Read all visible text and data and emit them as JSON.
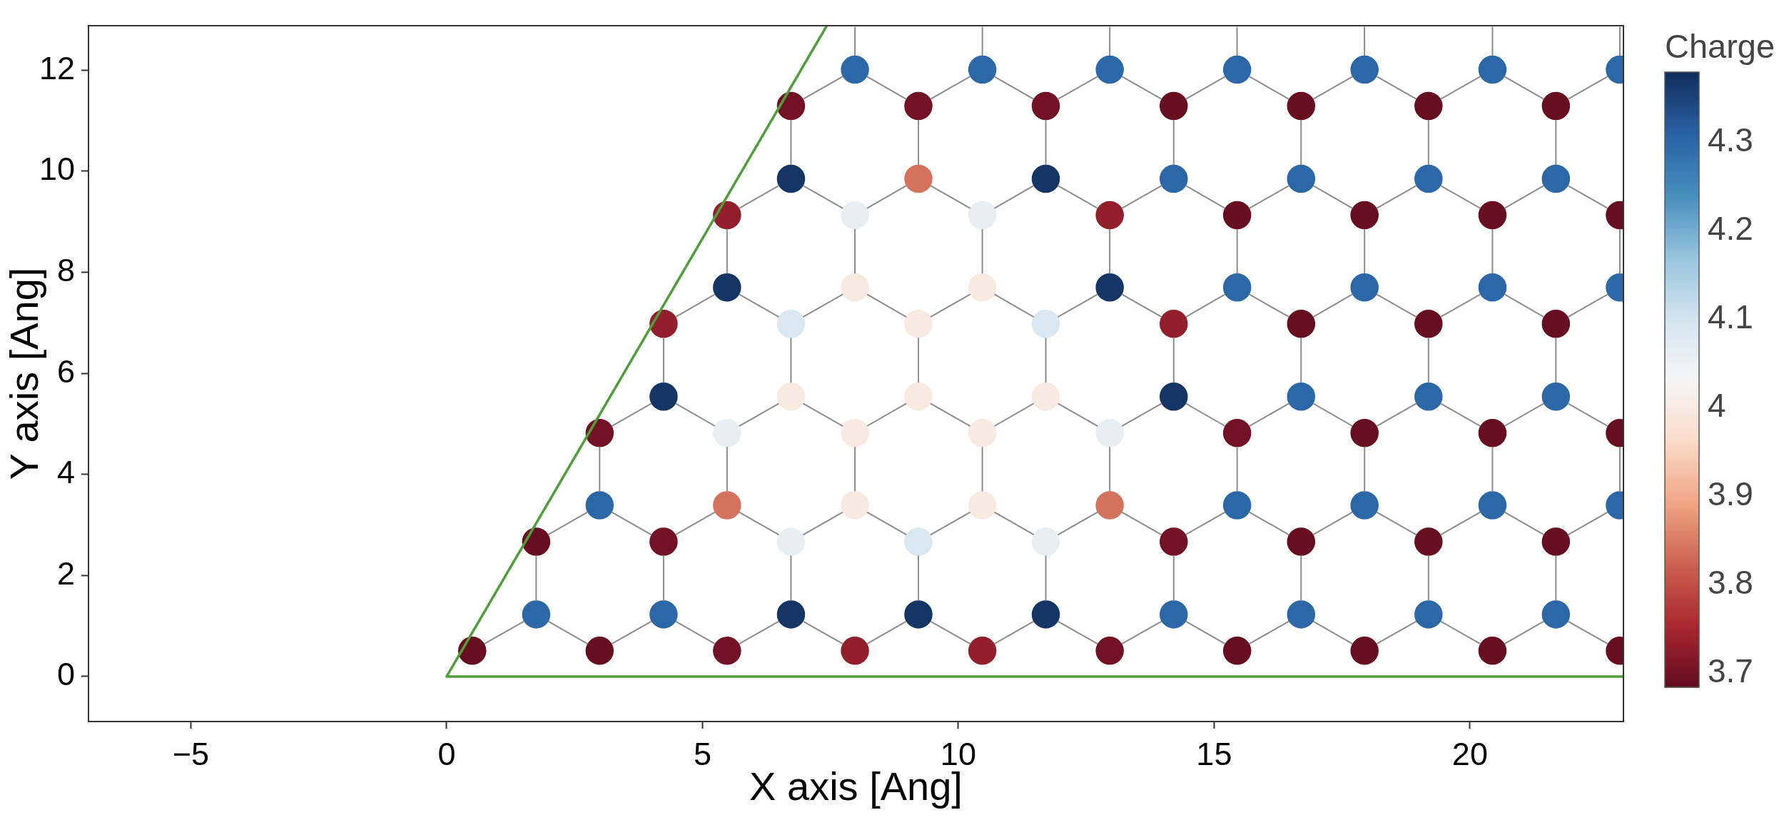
{
  "chart_data": {
    "type": "scatter",
    "xlabel": "X axis [Ang]",
    "ylabel": "Y axis [Ang]",
    "clabel": "Charge",
    "xlim": [
      -7,
      23
    ],
    "ylim": [
      -0.89,
      12.88
    ],
    "xticks": [
      {
        "value": -5,
        "label": "−5"
      },
      0,
      5,
      10,
      15,
      20
    ],
    "yticks": [
      0,
      2,
      4,
      6,
      8,
      10,
      12
    ],
    "clim": [
      3.684,
      4.379
    ],
    "cticks": [
      3.7,
      3.8,
      3.9,
      4,
      4.1,
      4.2,
      4.3
    ],
    "grid": false,
    "legend": false,
    "series": [
      {
        "marker": "circle",
        "x": [
          0.5,
          2.99,
          5.48,
          7.98,
          10.47,
          12.96,
          15.45,
          17.94,
          20.44,
          22.93,
          1.75,
          4.24,
          6.73,
          9.22,
          11.71,
          14.21,
          16.7,
          19.19,
          21.68,
          1.75,
          4.24,
          6.73,
          9.22,
          11.71,
          14.21,
          16.7,
          19.19,
          21.68,
          2.99,
          5.48,
          7.98,
          10.47,
          12.96,
          15.45,
          17.94,
          20.44,
          22.93,
          2.99,
          5.48,
          7.98,
          10.47,
          12.96,
          15.45,
          17.94,
          20.44,
          22.93,
          4.24,
          6.73,
          9.22,
          11.71,
          14.21,
          16.7,
          19.19,
          21.68,
          4.24,
          6.73,
          9.22,
          11.71,
          14.21,
          16.7,
          19.19,
          21.68,
          5.48,
          7.98,
          10.47,
          12.96,
          15.45,
          17.94,
          20.44,
          22.93,
          5.48,
          7.98,
          10.47,
          12.96,
          15.45,
          17.94,
          20.44,
          22.93,
          6.73,
          9.22,
          11.71,
          14.21,
          16.7,
          19.19,
          21.68,
          6.73,
          9.22,
          11.71,
          14.21,
          16.7,
          19.19,
          21.68,
          7.98,
          10.47,
          12.96,
          15.45,
          17.94,
          20.44,
          22.93
        ],
        "values": [
          0.51,
          0.51,
          0.51,
          0.51,
          0.51,
          0.51,
          0.51,
          0.51,
          0.51,
          0.51,
          1.23,
          1.23,
          1.23,
          1.23,
          1.23,
          1.23,
          1.23,
          1.23,
          1.23,
          2.67,
          2.67,
          2.67,
          2.67,
          2.67,
          2.67,
          2.67,
          2.67,
          2.67,
          3.39,
          3.39,
          3.39,
          3.39,
          3.39,
          3.39,
          3.39,
          3.39,
          3.39,
          4.82,
          4.82,
          4.82,
          4.82,
          4.82,
          4.82,
          4.82,
          4.82,
          4.82,
          5.54,
          5.54,
          5.54,
          5.54,
          5.54,
          5.54,
          5.54,
          5.54,
          6.98,
          6.98,
          6.98,
          6.98,
          6.98,
          6.98,
          6.98,
          6.98,
          7.7,
          7.7,
          7.7,
          7.7,
          7.7,
          7.7,
          7.7,
          7.7,
          9.13,
          9.13,
          9.13,
          9.13,
          9.13,
          9.13,
          9.13,
          9.13,
          9.85,
          9.85,
          9.85,
          9.85,
          9.85,
          9.85,
          9.85,
          11.29,
          11.29,
          11.29,
          11.29,
          11.29,
          11.29,
          11.29,
          12.01,
          12.01,
          12.01,
          12.01,
          12.01,
          12.01,
          12.01
        ],
        "cvalues": [
          3.69,
          3.69,
          3.7,
          3.73,
          3.73,
          3.7,
          3.69,
          3.69,
          3.69,
          3.69,
          4.3,
          4.3,
          4.37,
          4.37,
          4.37,
          4.3,
          4.3,
          4.3,
          4.3,
          3.69,
          3.7,
          4.06,
          4.09,
          4.06,
          3.7,
          3.69,
          3.69,
          3.69,
          4.3,
          3.84,
          4.0,
          4.0,
          3.84,
          4.3,
          4.3,
          4.3,
          4.3,
          3.7,
          4.06,
          4.0,
          4.0,
          4.06,
          3.7,
          3.69,
          3.69,
          3.69,
          4.37,
          4.0,
          4.0,
          4.0,
          4.37,
          4.3,
          4.3,
          4.3,
          3.73,
          4.09,
          4.0,
          4.09,
          3.73,
          3.69,
          3.69,
          3.69,
          4.37,
          4.0,
          4.0,
          4.37,
          4.3,
          4.3,
          4.3,
          4.3,
          3.73,
          4.06,
          4.06,
          3.73,
          3.69,
          3.69,
          3.69,
          3.69,
          4.37,
          3.84,
          4.37,
          4.3,
          4.3,
          4.3,
          4.3,
          3.7,
          3.7,
          3.7,
          3.69,
          3.69,
          3.69,
          3.69,
          4.3,
          4.3,
          4.3,
          4.3,
          4.3,
          4.3,
          4.3
        ],
        "colors": [
          "#680e21",
          "#680e21",
          "#731224",
          "#921f2b",
          "#921f2b",
          "#731224",
          "#680e21",
          "#680e21",
          "#680e21",
          "#680e21",
          "#2c68a8",
          "#2c68a8",
          "#153565",
          "#153565",
          "#153565",
          "#2c68a8",
          "#2c68a8",
          "#2c68a8",
          "#2c68a8",
          "#680e21",
          "#731224",
          "#e7eff3",
          "#d8e7f0",
          "#e7eff3",
          "#731224",
          "#680e21",
          "#680e21",
          "#680e21",
          "#2c68a8",
          "#d5725d",
          "#f8eae1",
          "#f8eae1",
          "#d5725d",
          "#2c68a8",
          "#2c68a8",
          "#2c68a8",
          "#2c68a8",
          "#731224",
          "#e7eff3",
          "#f8eae1",
          "#f8eae1",
          "#e7eff3",
          "#731224",
          "#680e21",
          "#680e21",
          "#680e21",
          "#153565",
          "#f8eae1",
          "#f8eae1",
          "#f8eae1",
          "#153565",
          "#2c68a8",
          "#2c68a8",
          "#2c68a8",
          "#921f2b",
          "#d8e7f0",
          "#f8eae1",
          "#d8e7f0",
          "#921f2b",
          "#680e21",
          "#680e21",
          "#680e21",
          "#153565",
          "#f8eae1",
          "#f8eae1",
          "#153565",
          "#2c68a8",
          "#2c68a8",
          "#2c68a8",
          "#2c68a8",
          "#921f2b",
          "#e7eff3",
          "#e7eff3",
          "#921f2b",
          "#680e21",
          "#680e21",
          "#680e21",
          "#680e21",
          "#153565",
          "#d5725d",
          "#153565",
          "#2c68a8",
          "#2c68a8",
          "#2c68a8",
          "#2c68a8",
          "#731224",
          "#731224",
          "#731224",
          "#680e21",
          "#680e21",
          "#680e21",
          "#680e21",
          "#2c68a8",
          "#2c68a8",
          "#2c68a8",
          "#2c68a8",
          "#2c68a8",
          "#2c68a8",
          "#2c68a8"
        ]
      },
      {
        "type": "line",
        "color": "#4f9e3b",
        "x": [
          7.43,
          0,
          23
        ],
        "values": [
          12.88,
          0,
          0
        ]
      }
    ]
  }
}
